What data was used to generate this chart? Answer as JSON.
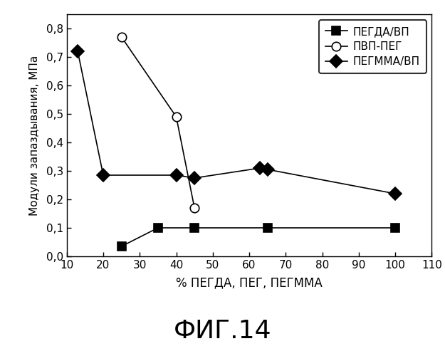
{
  "series": [
    {
      "label": "ПЕГДА/ВП",
      "x": [
        25,
        35,
        45,
        65,
        100
      ],
      "y": [
        0.035,
        0.1,
        0.1,
        0.1,
        0.1
      ],
      "marker": "s",
      "marker_size": 8,
      "marker_facecolor": "black",
      "marker_edgecolor": "black",
      "linestyle": "-",
      "color": "black",
      "linewidth": 1.2
    },
    {
      "label": "ПВП-ПЕГ",
      "x": [
        25,
        40,
        45
      ],
      "y": [
        0.77,
        0.49,
        0.17
      ],
      "marker": "o",
      "marker_size": 9,
      "marker_facecolor": "white",
      "marker_edgecolor": "black",
      "linestyle": "-",
      "color": "black",
      "linewidth": 1.2
    },
    {
      "label": "ПЕГММА/ВП",
      "x": [
        13,
        20,
        40,
        45,
        63,
        65,
        100
      ],
      "y": [
        0.72,
        0.285,
        0.285,
        0.275,
        0.31,
        0.305,
        0.22
      ],
      "marker": "D",
      "marker_size": 9,
      "marker_facecolor": "black",
      "marker_edgecolor": "black",
      "linestyle": "-",
      "color": "black",
      "linewidth": 1.2
    }
  ],
  "xlabel": "% ПЕГДА, ПЕГ, ПЕГММА",
  "ylabel": "Модули запаздывания, МПа",
  "xlim": [
    10,
    110
  ],
  "ylim": [
    0.0,
    0.85
  ],
  "xticks": [
    10,
    20,
    30,
    40,
    50,
    60,
    70,
    80,
    90,
    100,
    110
  ],
  "yticks": [
    0.0,
    0.1,
    0.2,
    0.3,
    0.4,
    0.5,
    0.6,
    0.7,
    0.8
  ],
  "ytick_labels": [
    "0,0",
    "0,1",
    "0,2",
    "0,3",
    "0,4",
    "0,5",
    "0,6",
    "0,7",
    "0,8"
  ],
  "figure_label": "ФИГ.14",
  "background_color": "#ffffff",
  "legend_loc": "upper right"
}
